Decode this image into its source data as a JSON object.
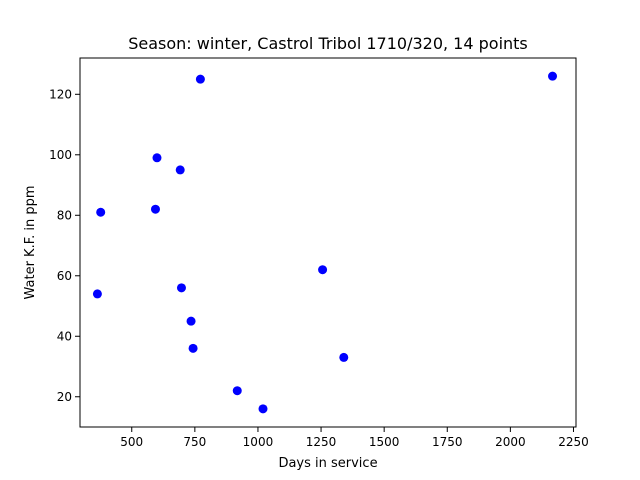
{
  "chart_data": {
    "type": "scatter",
    "title": "Season: winter, Castrol Tribol 1710/320, 14 points",
    "xlabel": "Days in service",
    "ylabel": "Water K.F. in ppm",
    "xlim": [
      295,
      2260
    ],
    "ylim": [
      10,
      132
    ],
    "xticks": [
      500,
      750,
      1000,
      1250,
      1500,
      1750,
      2000,
      2250
    ],
    "yticks": [
      20,
      40,
      60,
      80,
      100,
      120
    ],
    "grid": false,
    "marker_color": "#0000ff",
    "points": [
      {
        "x": 364,
        "y": 54
      },
      {
        "x": 377,
        "y": 81
      },
      {
        "x": 594,
        "y": 82
      },
      {
        "x": 600,
        "y": 99
      },
      {
        "x": 692,
        "y": 95
      },
      {
        "x": 697,
        "y": 56
      },
      {
        "x": 735,
        "y": 45
      },
      {
        "x": 743,
        "y": 36
      },
      {
        "x": 772,
        "y": 125
      },
      {
        "x": 918,
        "y": 22
      },
      {
        "x": 1020,
        "y": 16
      },
      {
        "x": 1256,
        "y": 62
      },
      {
        "x": 1340,
        "y": 33
      },
      {
        "x": 2167,
        "y": 126
      }
    ]
  }
}
